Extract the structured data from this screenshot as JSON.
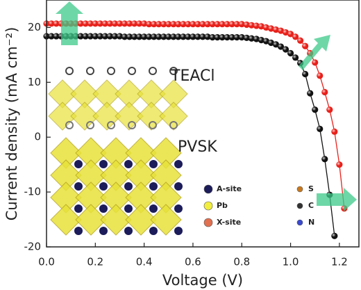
{
  "chart_data": {
    "type": "line",
    "x_label": "Voltage (V)",
    "y_label": "Current density (mA cm⁻²)",
    "x": [
      0,
      0.02,
      0.04,
      0.06,
      0.08,
      0.1,
      0.12,
      0.14,
      0.16,
      0.18,
      0.2,
      0.22,
      0.24,
      0.26,
      0.28,
      0.3,
      0.32,
      0.34,
      0.36,
      0.38,
      0.4,
      0.42,
      0.44,
      0.46,
      0.48,
      0.5,
      0.52,
      0.54,
      0.56,
      0.58,
      0.6,
      0.62,
      0.64,
      0.66,
      0.68,
      0.7,
      0.72,
      0.74,
      0.76,
      0.78,
      0.8,
      0.82,
      0.84,
      0.86,
      0.88,
      0.9,
      0.92,
      0.94,
      0.96,
      0.98,
      1.0,
      1.02,
      1.04,
      1.06,
      1.08,
      1.1,
      1.12,
      1.14,
      1.16,
      1.18,
      1.2,
      1.22,
      1.24
    ],
    "series": [
      {
        "color": "#111111",
        "values": [
          18.4,
          18.4,
          18.4,
          18.4,
          18.4,
          18.4,
          18.4,
          18.4,
          18.4,
          18.4,
          18.4,
          18.4,
          18.4,
          18.4,
          18.4,
          18.4,
          18.3,
          18.3,
          18.3,
          18.3,
          18.3,
          18.3,
          18.3,
          18.3,
          18.3,
          18.3,
          18.3,
          18.3,
          18.3,
          18.3,
          18.3,
          18.3,
          18.3,
          18.3,
          18.2,
          18.2,
          18.2,
          18.2,
          18.2,
          18.2,
          18.2,
          18.1,
          18.0,
          17.9,
          17.7,
          17.5,
          17.2,
          16.9,
          16.5,
          16.0,
          15.3,
          14.5,
          13.5,
          11.5,
          8.0,
          5.0,
          1.5,
          -4,
          -10.5,
          -18,
          null,
          null,
          null
        ]
      },
      {
        "color": "#e8201a",
        "values": [
          20.7,
          20.7,
          20.7,
          20.7,
          20.7,
          20.7,
          20.7,
          20.7,
          20.7,
          20.7,
          20.7,
          20.7,
          20.7,
          20.7,
          20.7,
          20.7,
          20.7,
          20.7,
          20.7,
          20.7,
          20.7,
          20.6,
          20.6,
          20.6,
          20.6,
          20.6,
          20.6,
          20.6,
          20.6,
          20.6,
          20.6,
          20.6,
          20.6,
          20.6,
          20.6,
          20.6,
          20.6,
          20.6,
          20.6,
          20.6,
          20.6,
          20.5,
          20.4,
          20.3,
          20.2,
          20.0,
          19.8,
          19.6,
          19.4,
          19.1,
          18.8,
          18.3,
          17.6,
          16.6,
          15.3,
          13.6,
          11.2,
          8.2,
          5.0,
          1.0,
          -5,
          -13,
          null
        ]
      }
    ],
    "xlim": [
      0,
      1.28
    ],
    "ylim": [
      -20,
      25
    ],
    "xticks": [
      {
        "value": 0,
        "label": "0.0"
      },
      0.2,
      0.4,
      0.6,
      0.8,
      {
        "value": 1,
        "label": "1.0"
      },
      1.2
    ],
    "yticks": [
      -20,
      -10,
      0,
      10,
      20
    ],
    "annotations": [
      "TEACl",
      "PVSK"
    ],
    "inset_legend": [
      {
        "label": "A-site",
        "color": "#1c1c5a"
      },
      {
        "label": "S",
        "color": "#c87a20"
      },
      {
        "label": "Pb",
        "color": "#f2ee40"
      },
      {
        "label": "C",
        "color": "#333333"
      },
      {
        "label": "X-site",
        "color": "#e07050"
      },
      {
        "label": "N",
        "color": "#3a4ad0"
      }
    ]
  }
}
